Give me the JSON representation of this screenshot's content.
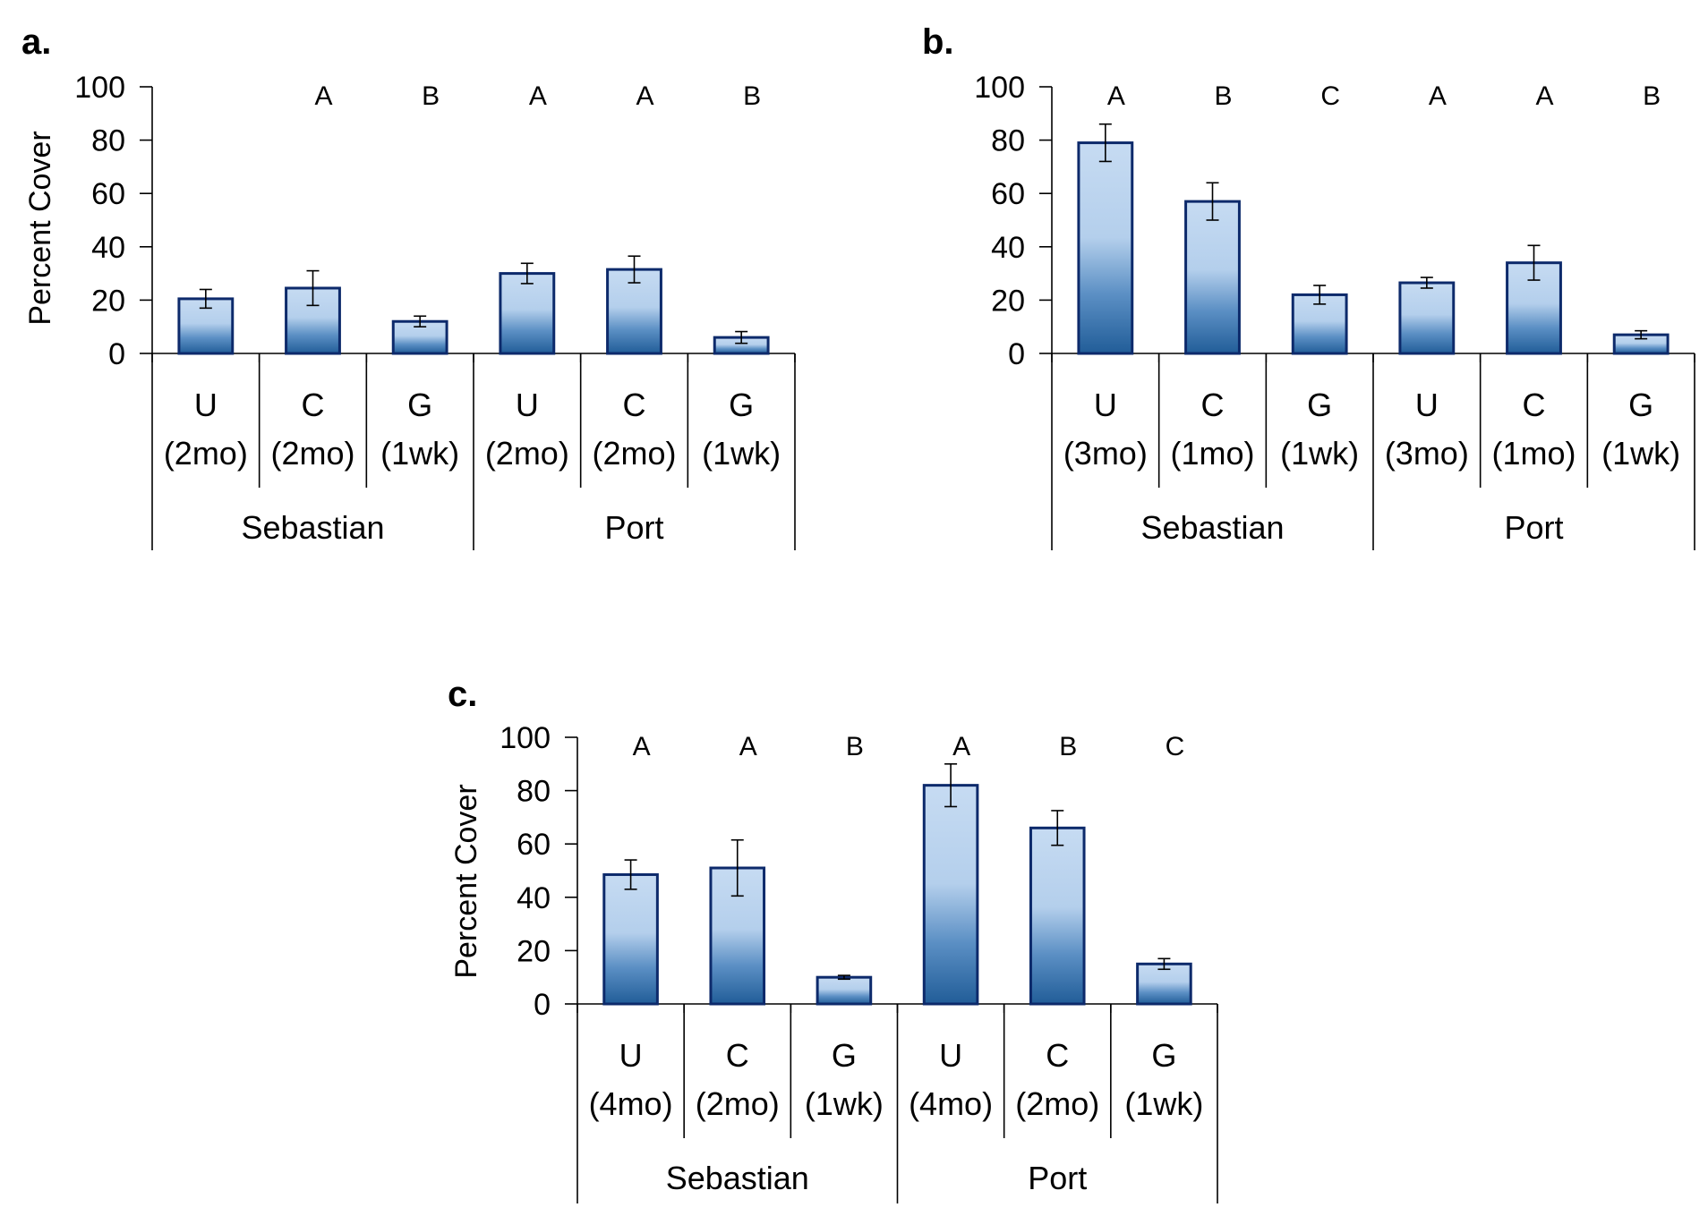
{
  "chart_data": [
    {
      "type": "bar",
      "panel_label": "a.",
      "ylabel": "Percent Cover",
      "ylim": [
        0,
        100
      ],
      "yticks": [
        0,
        20,
        40,
        60,
        80,
        100
      ],
      "categories": [
        "U",
        "C",
        "G",
        "U",
        "C",
        "G"
      ],
      "durations": [
        "(2mo)",
        "(2mo)",
        "(1wk)",
        "(2mo)",
        "(2mo)",
        "(1wk)"
      ],
      "groups": [
        {
          "name": "Sebastian",
          "span": 3
        },
        {
          "name": "Port",
          "span": 3
        }
      ],
      "values": [
        20.5,
        24.5,
        12,
        30,
        31.5,
        6
      ],
      "errors": [
        3.5,
        6.5,
        2,
        3.8,
        5,
        2.2
      ],
      "letters": [
        "",
        "A",
        "B",
        "A",
        "A",
        "B"
      ]
    },
    {
      "type": "bar",
      "panel_label": "b.",
      "ylabel": "",
      "ylim": [
        0,
        100
      ],
      "yticks": [
        0,
        20,
        40,
        60,
        80,
        100
      ],
      "categories": [
        "U",
        "C",
        "G",
        "U",
        "C",
        "G"
      ],
      "durations": [
        "(3mo)",
        "(1mo)",
        "(1wk)",
        "(3mo)",
        "(1mo)",
        "(1wk)"
      ],
      "groups": [
        {
          "name": "Sebastian",
          "span": 3
        },
        {
          "name": "Port",
          "span": 3
        }
      ],
      "values": [
        79,
        57,
        22,
        26.5,
        34,
        7
      ],
      "errors": [
        7,
        7,
        3.5,
        2,
        6.5,
        1.5
      ],
      "letters": [
        "A",
        "B",
        "C",
        "A",
        "A",
        "B"
      ]
    },
    {
      "type": "bar",
      "panel_label": "c.",
      "ylabel": "Percent Cover",
      "ylim": [
        0,
        100
      ],
      "yticks": [
        0,
        20,
        40,
        60,
        80,
        100
      ],
      "categories": [
        "U",
        "C",
        "G",
        "U",
        "C",
        "G"
      ],
      "durations": [
        "(4mo)",
        "(2mo)",
        "(1wk)",
        "(4mo)",
        "(2mo)",
        "(1wk)"
      ],
      "groups": [
        {
          "name": "Sebastian",
          "span": 3
        },
        {
          "name": "Port",
          "span": 3
        }
      ],
      "values": [
        48.5,
        51,
        10,
        82,
        66,
        15
      ],
      "errors": [
        5.5,
        10.5,
        0.7,
        8,
        6.5,
        2
      ],
      "letters": [
        "A",
        "A",
        "B",
        "A",
        "B",
        "C"
      ]
    }
  ],
  "colors": {
    "bar_top": "#c3d9f1",
    "bar_mid": "#a9c6e6",
    "bar_bottom": "#2e6aa3",
    "bar_edge": "#0d2a6b",
    "axis": "#000000"
  }
}
